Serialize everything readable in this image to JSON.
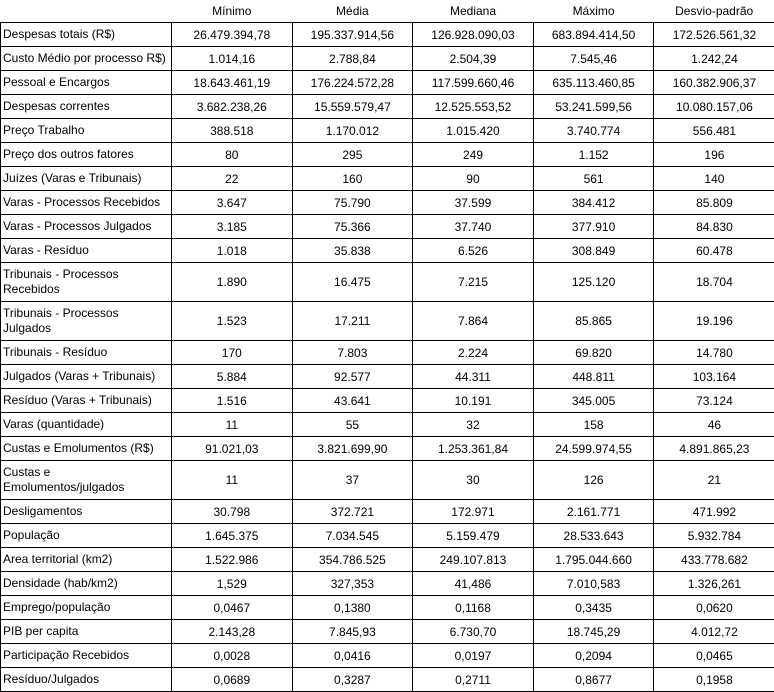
{
  "table": {
    "columns": [
      "Mínimo",
      "Média",
      "Mediana",
      "Máximo",
      "Desvio-padrão"
    ],
    "rows": [
      {
        "label": "Despesas totais (R$)",
        "values": [
          "26.479.394,78",
          "195.337.914,56",
          "126.928.090,03",
          "683.894.414,50",
          "172.526.561,32"
        ]
      },
      {
        "label": "Custo Médio por processo R$)",
        "values": [
          "1.014,16",
          "2.788,84",
          "2.504,39",
          "7.545,46",
          "1.242,24"
        ]
      },
      {
        "label": "Pessoal e Encargos",
        "values": [
          "18.643.461,19",
          "176.224.572,28",
          "117.599.660,46",
          "635.113.460,85",
          "160.382.906,37"
        ]
      },
      {
        "label": "Despesas correntes",
        "values": [
          "3.682.238,26",
          "15.559.579,47",
          "12.525.553,52",
          "53.241.599,56",
          "10.080.157,06"
        ]
      },
      {
        "label": "Preço Trabalho",
        "values": [
          "388.518",
          "1.170.012",
          "1.015.420",
          "3.740.774",
          "556.481"
        ]
      },
      {
        "label": "Preço dos outros fatores",
        "values": [
          "80",
          "295",
          "249",
          "1.152",
          "196"
        ]
      },
      {
        "label": "Juízes (Varas e Tribunais)",
        "values": [
          "22",
          "160",
          "90",
          "561",
          "140"
        ]
      },
      {
        "label": "Varas - Processos Recebidos",
        "values": [
          "3.647",
          "75.790",
          "37.599",
          "384.412",
          "85.809"
        ]
      },
      {
        "label": "Varas - Processos Julgados",
        "values": [
          "3.185",
          "75.366",
          "37.740",
          "377.910",
          "84.830"
        ]
      },
      {
        "label": "Varas - Resíduo",
        "values": [
          "1.018",
          "35.838",
          "6.526",
          "308.849",
          "60.478"
        ]
      },
      {
        "label": "Tribunais - Processos Recebidos",
        "values": [
          "1.890",
          "16.475",
          "7.215",
          "125.120",
          "18.704"
        ]
      },
      {
        "label": "Tribunais - Processos Julgados",
        "values": [
          "1.523",
          "17.211",
          "7.864",
          "85.865",
          "19.196"
        ]
      },
      {
        "label": "Tribunais - Resíduo",
        "values": [
          "170",
          "7.803",
          "2.224",
          "69.820",
          "14.780"
        ]
      },
      {
        "label": "Julgados (Varas + Tribunais)",
        "values": [
          "5.884",
          "92.577",
          "44.311",
          "448.811",
          "103.164"
        ]
      },
      {
        "label": "Resíduo (Varas + Tribunais)",
        "values": [
          "1.516",
          "43.641",
          "10.191",
          "345.005",
          "73.124"
        ]
      },
      {
        "label": "Varas (quantidade)",
        "values": [
          "11",
          "55",
          "32",
          "158",
          "46"
        ]
      },
      {
        "label": "Custas e Emolumentos (R$)",
        "values": [
          "91.021,03",
          "3.821.699,90",
          "1.253.361,84",
          "24.599.974,55",
          "4.891.865,23"
        ]
      },
      {
        "label": "Custas e Emolumentos/julgados",
        "values": [
          "11",
          "37",
          "30",
          "126",
          "21"
        ]
      },
      {
        "label": "Desligamentos",
        "values": [
          "30.798",
          "372.721",
          "172.971",
          "2.161.771",
          "471.992"
        ]
      },
      {
        "label": "População",
        "values": [
          "1.645.375",
          "7.034.545",
          "5.159.479",
          "28.533.643",
          "5.932.784"
        ]
      },
      {
        "label": "Area territorial (km2)",
        "values": [
          "1.522.986",
          "354.786.525",
          "249.107.813",
          "1.795.044.660",
          "433.778.682"
        ]
      },
      {
        "label": "Densidade (hab/km2)",
        "values": [
          "1,529",
          "327,353",
          "41,486",
          "7.010,583",
          "1.326,261"
        ]
      },
      {
        "label": "Emprego/população",
        "values": [
          "0,0467",
          "0,1380",
          "0,1168",
          "0,3435",
          "0,0620"
        ]
      },
      {
        "label": "PIB per capita",
        "values": [
          "2.143,28",
          "7.845,93",
          "6.730,70",
          "18.745,29",
          "4.012,72"
        ]
      },
      {
        "label": "Participação Recebidos",
        "values": [
          "0,0028",
          "0,0416",
          "0,0197",
          "0,2094",
          "0,0465"
        ]
      },
      {
        "label": "Resíduo/Julgados",
        "values": [
          "0,0689",
          "0,3287",
          "0,2711",
          "0,8677",
          "0,1958"
        ]
      }
    ],
    "font_size": 12,
    "border_color": "#000000",
    "background_color": "#ffffff"
  }
}
